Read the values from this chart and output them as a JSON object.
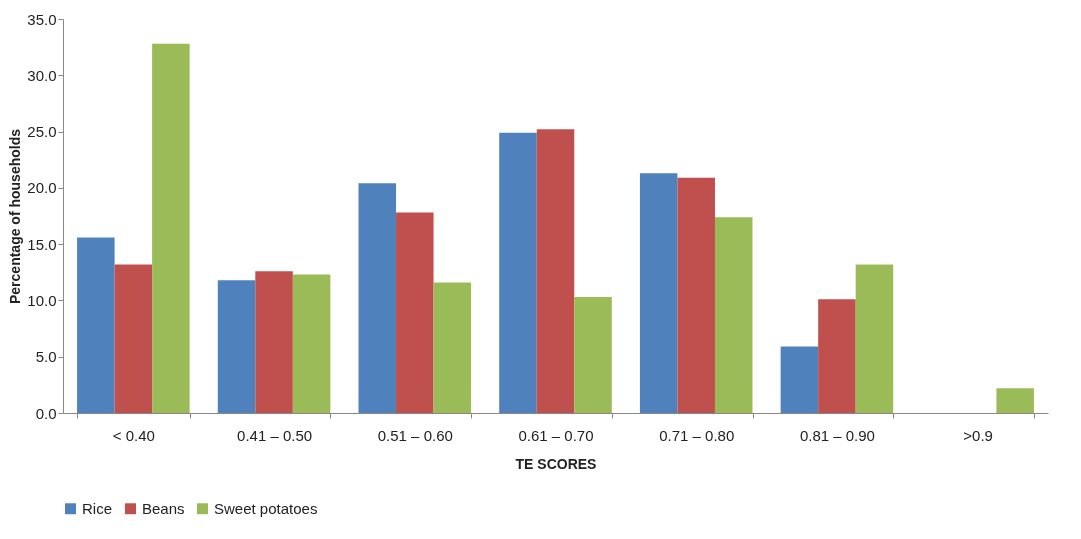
{
  "chart_data": {
    "type": "bar",
    "xlabel": "TE SCORES",
    "ylabel": "Percentage of households",
    "categories": [
      "< 0.40",
      "0.41 – 0.50",
      "0.51 – 0.60",
      "0.61 – 0.70",
      "0.71 – 0.80",
      "0.81 – 0.90",
      ">0.9"
    ],
    "series": [
      {
        "name": "Rice",
        "color": "#4f81bd",
        "values": [
          15.6,
          11.8,
          20.4,
          24.9,
          21.3,
          5.9,
          0
        ]
      },
      {
        "name": "Beans",
        "color": "#c0504d",
        "values": [
          13.2,
          12.6,
          17.8,
          25.2,
          20.9,
          10.1,
          0
        ]
      },
      {
        "name": "Sweet potatoes",
        "color": "#9bbb59",
        "values": [
          32.8,
          12.3,
          11.6,
          10.3,
          17.4,
          13.2,
          2.2
        ]
      }
    ],
    "ylim": [
      0,
      35
    ],
    "yticks": [
      {
        "value": 0,
        "label": "0.0"
      },
      {
        "value": 5,
        "label": "5.0"
      },
      {
        "value": 10,
        "label": "10.0"
      },
      {
        "value": 15,
        "label": "15.0"
      },
      {
        "value": 20,
        "label": "20.0"
      },
      {
        "value": 25,
        "label": "25.0"
      },
      {
        "value": 30,
        "label": "30.0"
      },
      {
        "value": 35,
        "label": "35.0"
      }
    ],
    "grid": false,
    "legend": "bottom"
  }
}
